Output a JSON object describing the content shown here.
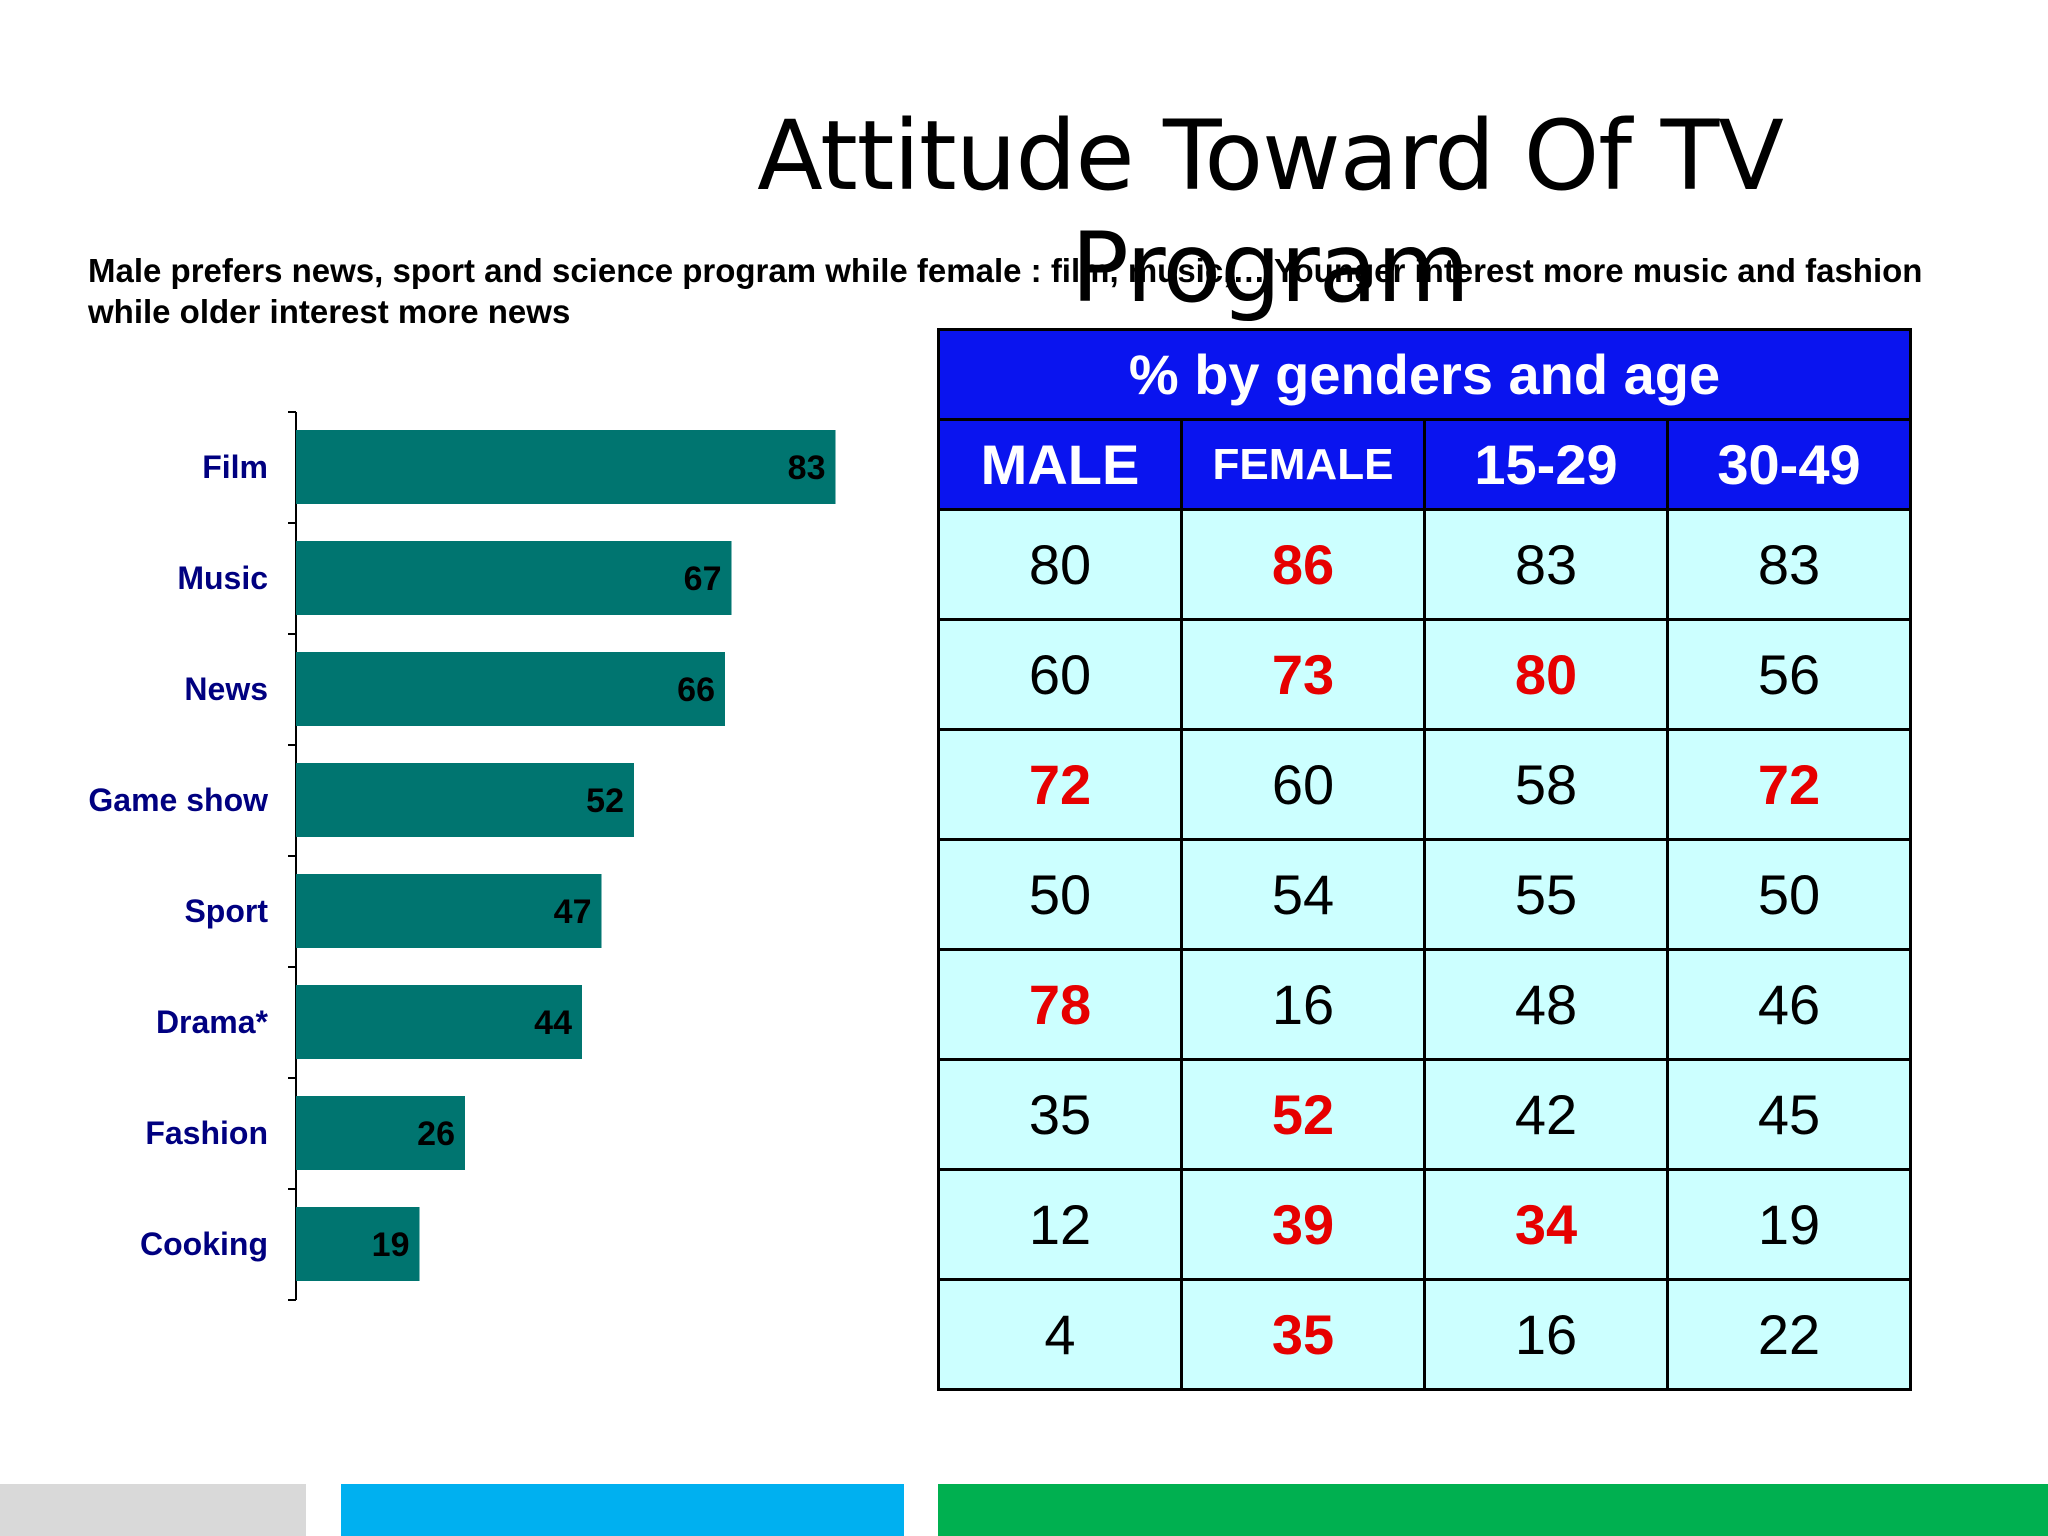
{
  "title": "Attitude Toward Of TV Program",
  "subtitle": "Male prefers news, sport and science program while female : film, music,… Younger interest more music and fashion while older interest more news",
  "chart_data": {
    "type": "bar",
    "orientation": "horizontal",
    "categories": [
      "Film",
      "Music",
      "News",
      "Game show",
      "Sport",
      "Drama*",
      "Fashion",
      "Cooking"
    ],
    "values": [
      83,
      67,
      66,
      52,
      47,
      44,
      26,
      19
    ],
    "xlim": [
      0,
      100
    ],
    "bar_color": "#007570",
    "category_color": "#000080",
    "grid": false
  },
  "table": {
    "title": "% by genders and age",
    "headers": [
      "MALE",
      "FEMALE",
      "15-29",
      "30-49"
    ],
    "rows": [
      [
        {
          "v": "80",
          "hl": false
        },
        {
          "v": "86",
          "hl": true
        },
        {
          "v": "83",
          "hl": false
        },
        {
          "v": "83",
          "hl": false
        }
      ],
      [
        {
          "v": "60",
          "hl": false
        },
        {
          "v": "73",
          "hl": true
        },
        {
          "v": "80",
          "hl": true
        },
        {
          "v": "56",
          "hl": false
        }
      ],
      [
        {
          "v": "72",
          "hl": true
        },
        {
          "v": "60",
          "hl": false
        },
        {
          "v": "58",
          "hl": false
        },
        {
          "v": "72",
          "hl": true
        }
      ],
      [
        {
          "v": "50",
          "hl": false
        },
        {
          "v": "54",
          "hl": false
        },
        {
          "v": "55",
          "hl": false
        },
        {
          "v": "50",
          "hl": false
        }
      ],
      [
        {
          "v": "78",
          "hl": true
        },
        {
          "v": "16",
          "hl": false
        },
        {
          "v": "48",
          "hl": false
        },
        {
          "v": "46",
          "hl": false
        }
      ],
      [
        {
          "v": "35",
          "hl": false
        },
        {
          "v": "52",
          "hl": true
        },
        {
          "v": "42",
          "hl": false
        },
        {
          "v": "45",
          "hl": false
        }
      ],
      [
        {
          "v": "12",
          "hl": false
        },
        {
          "v": "39",
          "hl": true
        },
        {
          "v": "34",
          "hl": true
        },
        {
          "v": "19",
          "hl": false
        }
      ],
      [
        {
          "v": "4",
          "hl": false
        },
        {
          "v": "35",
          "hl": true
        },
        {
          "v": "16",
          "hl": false
        },
        {
          "v": "22",
          "hl": false
        }
      ]
    ],
    "header_color": "#0a14ef",
    "cell_color": "#ccffff",
    "highlight_color": "#e60000"
  },
  "footer_colors": [
    "#d9d9d9",
    "#00b0f0",
    "#00b050"
  ]
}
